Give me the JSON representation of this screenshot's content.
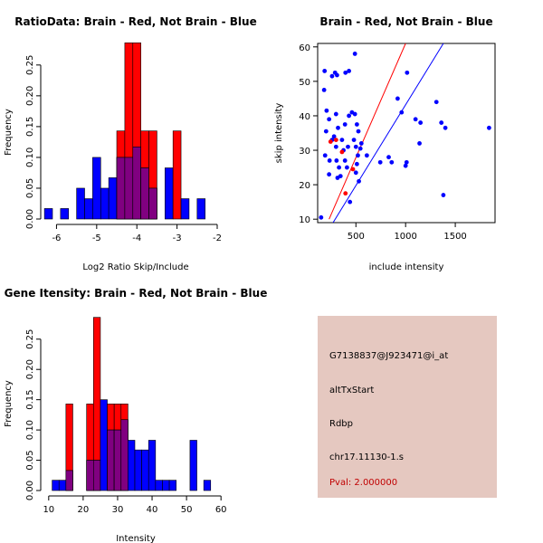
{
  "colors": {
    "red": "#ff0000",
    "blue": "#0000ff",
    "overlap": "#800080",
    "panel": "#e5c8c0",
    "pval": "#c00000"
  },
  "chart_data": [
    {
      "type": "bar",
      "title": "RatioData: Brain - Red, Not Brain - Blue",
      "xlabel": "Log2 Ratio Skip/Include",
      "ylabel": "Frequency",
      "xlim": [
        -6.28,
        -1.82
      ],
      "ylim": [
        0,
        0.285
      ],
      "xticks": [
        -6,
        -5,
        -4,
        -3,
        -2
      ],
      "yticks": [
        0.0,
        0.05,
        0.1,
        0.15,
        0.2,
        0.25
      ],
      "ytick_labels": [
        "0.00",
        "0.05",
        "0.10",
        "0.15",
        "0.20",
        "0.25"
      ],
      "bin_edges": [
        -6.3,
        -6.1,
        -5.9,
        -5.7,
        -5.5,
        -5.3,
        -5.1,
        -4.9,
        -4.7,
        -4.5,
        -4.3,
        -4.1,
        -3.9,
        -3.7,
        -3.5,
        -3.3,
        -3.1,
        -2.9,
        -2.7,
        -2.5,
        -2.3,
        -2.1,
        -1.9,
        -1.7
      ],
      "series": [
        {
          "name": "Brain",
          "color": "red",
          "values": [
            0,
            0,
            0,
            0,
            0,
            0,
            0,
            0,
            0,
            0.143,
            0.286,
            0.286,
            0.143,
            0.143,
            0,
            0,
            0.143,
            0,
            0,
            0,
            0,
            0,
            0
          ]
        },
        {
          "name": "Not Brain",
          "color": "blue",
          "values": [
            0.017,
            0,
            0.017,
            0,
            0.05,
            0.033,
            0.1,
            0.05,
            0.067,
            0.1,
            0.1,
            0.117,
            0.083,
            0.05,
            0,
            0.083,
            0,
            0.033,
            0,
            0.033,
            0,
            0,
            0
          ]
        }
      ]
    },
    {
      "type": "scatter",
      "title": "Brain - Red, Not Brain - Blue",
      "xlabel": "include intensity",
      "ylabel": "skip intensity",
      "xlim": [
        115,
        1900
      ],
      "ylim": [
        9,
        61
      ],
      "xticks": [
        500,
        1000,
        1500
      ],
      "yticks": [
        10,
        20,
        30,
        40,
        50,
        60
      ],
      "series": [
        {
          "name": "Not Brain",
          "color": "blue",
          "points": [
            [
              150,
              10.5
            ],
            [
              185,
              53
            ],
            [
              180,
              47.5
            ],
            [
              205,
              41.5
            ],
            [
              230,
              39
            ],
            [
              200,
              35.5
            ],
            [
              260,
              33
            ],
            [
              190,
              28.5
            ],
            [
              235,
              27
            ],
            [
              230,
              23
            ],
            [
              260,
              51.5
            ],
            [
              290,
              52.5
            ],
            [
              310,
              51.8
            ],
            [
              300,
              40.5
            ],
            [
              320,
              36.5
            ],
            [
              280,
              34
            ],
            [
              300,
              31
            ],
            [
              305,
              27
            ],
            [
              330,
              25
            ],
            [
              345,
              22.5
            ],
            [
              315,
              22
            ],
            [
              395,
              52.5
            ],
            [
              430,
              53
            ],
            [
              430,
              40
            ],
            [
              460,
              41
            ],
            [
              390,
              37.5
            ],
            [
              360,
              33
            ],
            [
              375,
              30
            ],
            [
              390,
              27
            ],
            [
              410,
              25
            ],
            [
              420,
              31
            ],
            [
              440,
              15
            ],
            [
              490,
              58
            ],
            [
              490,
              40.5
            ],
            [
              510,
              37.5
            ],
            [
              525,
              35.5
            ],
            [
              480,
              33
            ],
            [
              500,
              31
            ],
            [
              555,
              32
            ],
            [
              545,
              30.5
            ],
            [
              520,
              28.5
            ],
            [
              510,
              26
            ],
            [
              500,
              23.5
            ],
            [
              530,
              21
            ],
            [
              610,
              28.5
            ],
            [
              745,
              26.5
            ],
            [
              830,
              28
            ],
            [
              860,
              26.5
            ],
            [
              920,
              45
            ],
            [
              960,
              41
            ],
            [
              1015,
              52.5
            ],
            [
              1010,
              26.5
            ],
            [
              1000,
              25.5
            ],
            [
              1100,
              39
            ],
            [
              1150,
              38
            ],
            [
              1140,
              32
            ],
            [
              1310,
              44
            ],
            [
              1360,
              38
            ],
            [
              1380,
              17
            ],
            [
              1400,
              36.5
            ],
            [
              1840,
              36.5
            ]
          ]
        },
        {
          "name": "Brain",
          "color": "red",
          "points": [
            [
              245,
              32.5
            ],
            [
              300,
              33
            ],
            [
              360,
              29.5
            ],
            [
              395,
              17.5
            ],
            [
              470,
              24.5
            ]
          ]
        }
      ],
      "lines": [
        {
          "color": "red",
          "from": [
            230,
            10
          ],
          "to": [
            1000,
            61
          ]
        },
        {
          "color": "blue",
          "from": [
            270,
            9
          ],
          "to": [
            1380,
            61
          ]
        }
      ]
    },
    {
      "type": "bar",
      "title": "Gene Itensity: Brain - Red, Not Brain - Blue",
      "xlabel": "Intensity",
      "ylabel": "Frequency",
      "xlim": [
        9,
        61
      ],
      "ylim": [
        0,
        0.29
      ],
      "xticks": [
        10,
        20,
        30,
        40,
        50,
        60
      ],
      "yticks": [
        0.0,
        0.05,
        0.1,
        0.15,
        0.2,
        0.25
      ],
      "ytick_labels": [
        "0.00",
        "0.05",
        "0.10",
        "0.15",
        "0.20",
        "0.25"
      ],
      "bin_edges": [
        11,
        13,
        15,
        17,
        19,
        21,
        23,
        25,
        27,
        29,
        31,
        33,
        35,
        37,
        39,
        41,
        43,
        45,
        47,
        49,
        51,
        53,
        55,
        57,
        59
      ],
      "series": [
        {
          "name": "Brain",
          "color": "red",
          "values": [
            0,
            0,
            0.143,
            0,
            0,
            0.143,
            0.286,
            0,
            0.143,
            0.143,
            0.143,
            0,
            0,
            0,
            0,
            0,
            0,
            0,
            0,
            0,
            0,
            0,
            0,
            0
          ]
        },
        {
          "name": "Not Brain",
          "color": "blue",
          "values": [
            0.017,
            0.017,
            0.033,
            0,
            0,
            0.05,
            0.05,
            0.15,
            0.1,
            0.1,
            0.117,
            0.083,
            0.067,
            0.067,
            0.083,
            0.017,
            0.017,
            0.017,
            0,
            0,
            0.083,
            0,
            0.017,
            0
          ]
        }
      ]
    }
  ],
  "info_panel": {
    "probe_id": "G7138837@J923471@i_at",
    "event_type": "altTxStart",
    "gene": "Rdbp",
    "location": "chr17.11130-1.s",
    "pval": "Pval: 2.000000"
  }
}
